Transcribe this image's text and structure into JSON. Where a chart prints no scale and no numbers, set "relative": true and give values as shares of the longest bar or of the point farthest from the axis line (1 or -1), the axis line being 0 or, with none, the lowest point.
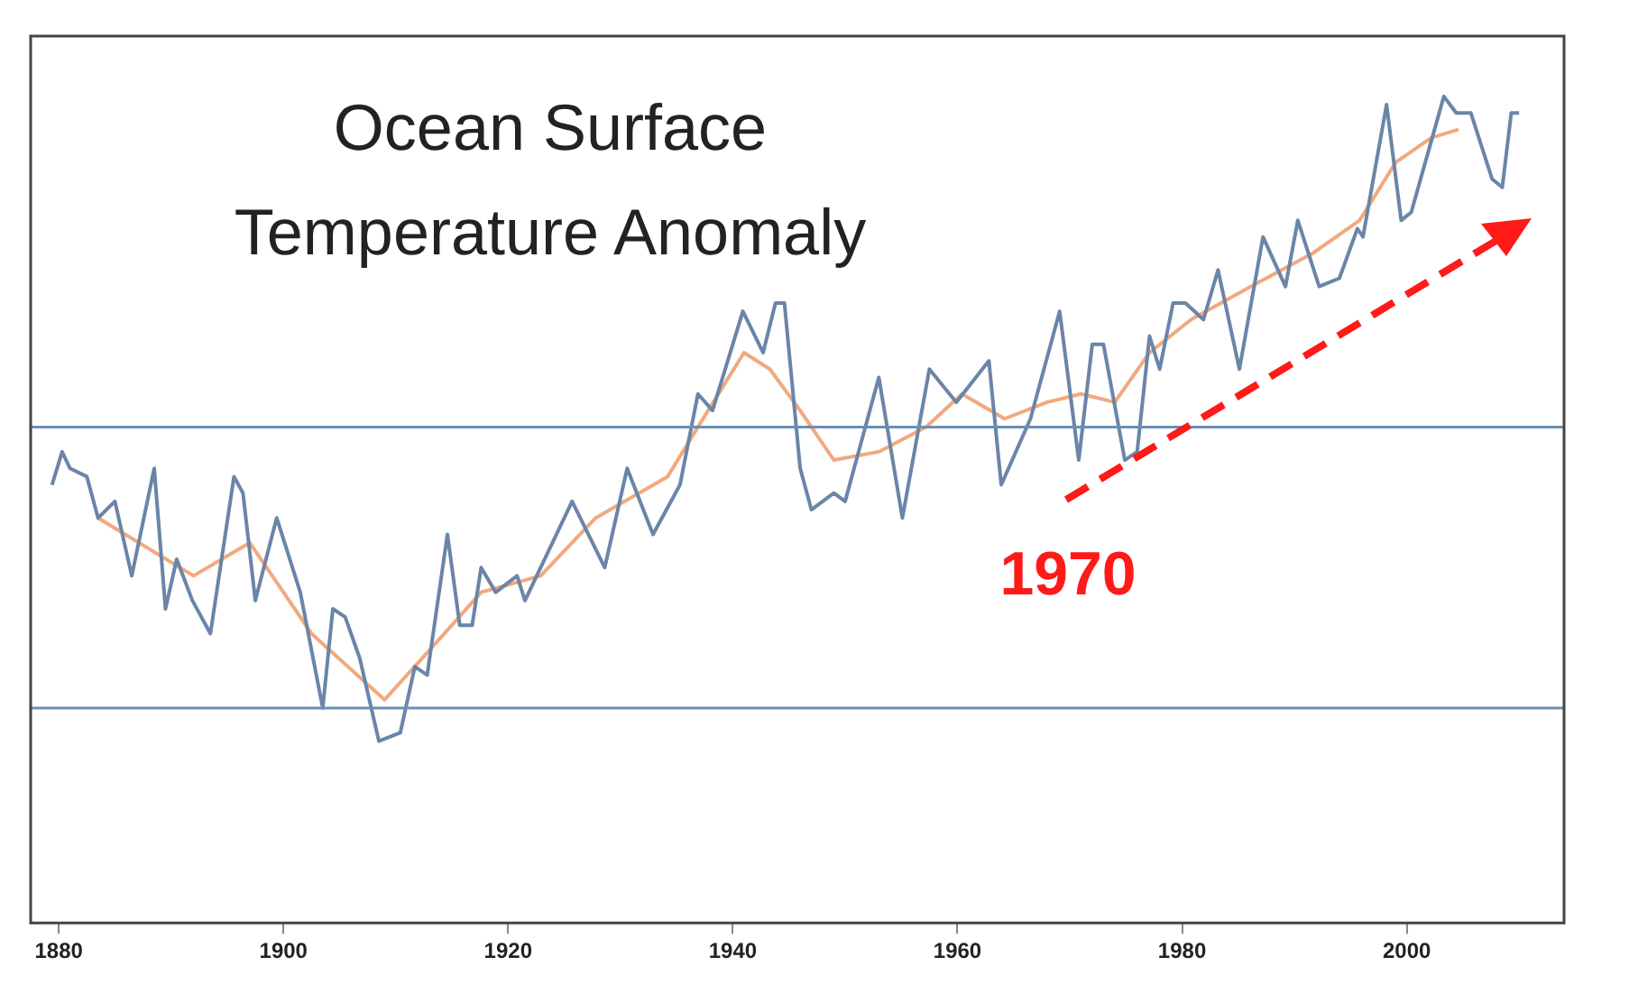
{
  "chart_data": {
    "type": "line",
    "title": "Ocean Surface Temperature Anomaly",
    "relative": true,
    "xlim": [
      1877.5,
      2014
    ],
    "xticks": [
      1880,
      1900,
      1920,
      1940,
      1960,
      1980,
      2000
    ],
    "grid": false,
    "legend": false,
    "marker": "none",
    "line_style": "solid",
    "series": [
      {
        "color": "#6a85a8",
        "x": [
          1879.4,
          1880.3,
          1881,
          1882.5,
          1883.5,
          1885,
          1886.5,
          1888.5,
          1889.5,
          1890.5,
          1891.9,
          1893.5,
          1895.6,
          1896.4,
          1897.5,
          1899.4,
          1901.5,
          1903.5,
          1904.4,
          1905.5,
          1906.8,
          1908.5,
          1910.4,
          1911.7,
          1912.8,
          1914.6,
          1915.7,
          1916.8,
          1917.6,
          1918.9,
          1920.8,
          1921.5,
          1925.7,
          1928.6,
          1930.6,
          1932.9,
          1935.3,
          1936.9,
          1938.2,
          1940.9,
          1942.7,
          1943.8,
          1944.6,
          1946,
          1947,
          1949,
          1950,
          1953,
          1955.1,
          1957.5,
          1959.9,
          1962.8,
          1963.9,
          1966.5,
          1969.1,
          1970.8,
          1972,
          1973,
          1974.9,
          1976,
          1977.1,
          1978,
          1979.2,
          1980.3,
          1981.9,
          1983.2,
          1985.1,
          1987.2,
          1989.2,
          1990.3,
          1992.2,
          1994,
          1995.6,
          1996.1,
          1998.2,
          1999.5,
          2000.4,
          2003.3,
          2004.4,
          2005.7,
          2007.6,
          2008.5,
          2009.3,
          2010
        ],
        "values": [
          0.53,
          0.57,
          0.55,
          0.54,
          0.49,
          0.51,
          0.42,
          0.55,
          0.38,
          0.44,
          0.39,
          0.35,
          0.54,
          0.52,
          0.39,
          0.49,
          0.4,
          0.26,
          0.38,
          0.37,
          0.32,
          0.22,
          0.23,
          0.31,
          0.3,
          0.47,
          0.36,
          0.36,
          0.43,
          0.4,
          0.42,
          0.39,
          0.51,
          0.43,
          0.55,
          0.47,
          0.53,
          0.64,
          0.62,
          0.74,
          0.69,
          0.75,
          0.75,
          0.55,
          0.5,
          0.52,
          0.51,
          0.66,
          0.49,
          0.67,
          0.63,
          0.68,
          0.53,
          0.61,
          0.74,
          0.56,
          0.7,
          0.7,
          0.56,
          0.57,
          0.71,
          0.67,
          0.75,
          0.75,
          0.73,
          0.79,
          0.67,
          0.83,
          0.77,
          0.85,
          0.77,
          0.78,
          0.84,
          0.83,
          0.99,
          0.85,
          0.86,
          1,
          0.98,
          0.98,
          0.9,
          0.89,
          0.98,
          0.98
        ]
      },
      {
        "color": "#f2a97e",
        "x": [
          1883.5,
          1892,
          1897,
          1902.5,
          1909,
          1913,
          1917.6,
          1922.9,
          1927.8,
          1934.2,
          1936.9,
          1941,
          1943.3,
          1946,
          1949,
          1953,
          1957.2,
          1960.4,
          1964.2,
          1968,
          1971,
          1974,
          1977.1,
          1980.8,
          1986.1,
          1991.6,
          1995.8,
          1999,
          2002.2,
          2004.6
        ],
        "values": [
          0.49,
          0.42,
          0.46,
          0.35,
          0.27,
          0.33,
          0.4,
          0.42,
          0.49,
          0.54,
          0.6,
          0.69,
          0.67,
          0.62,
          0.56,
          0.57,
          0.6,
          0.64,
          0.61,
          0.63,
          0.64,
          0.63,
          0.69,
          0.73,
          0.77,
          0.81,
          0.85,
          0.92,
          0.95,
          0.96
        ]
      }
    ],
    "ref_lines": [
      {
        "axis": "y",
        "value": 0.6,
        "color": "#6a8fb5"
      },
      {
        "axis": "y",
        "value": 0.26,
        "color": "#6a8fb5"
      }
    ],
    "annotations": [
      "1970"
    ]
  }
}
